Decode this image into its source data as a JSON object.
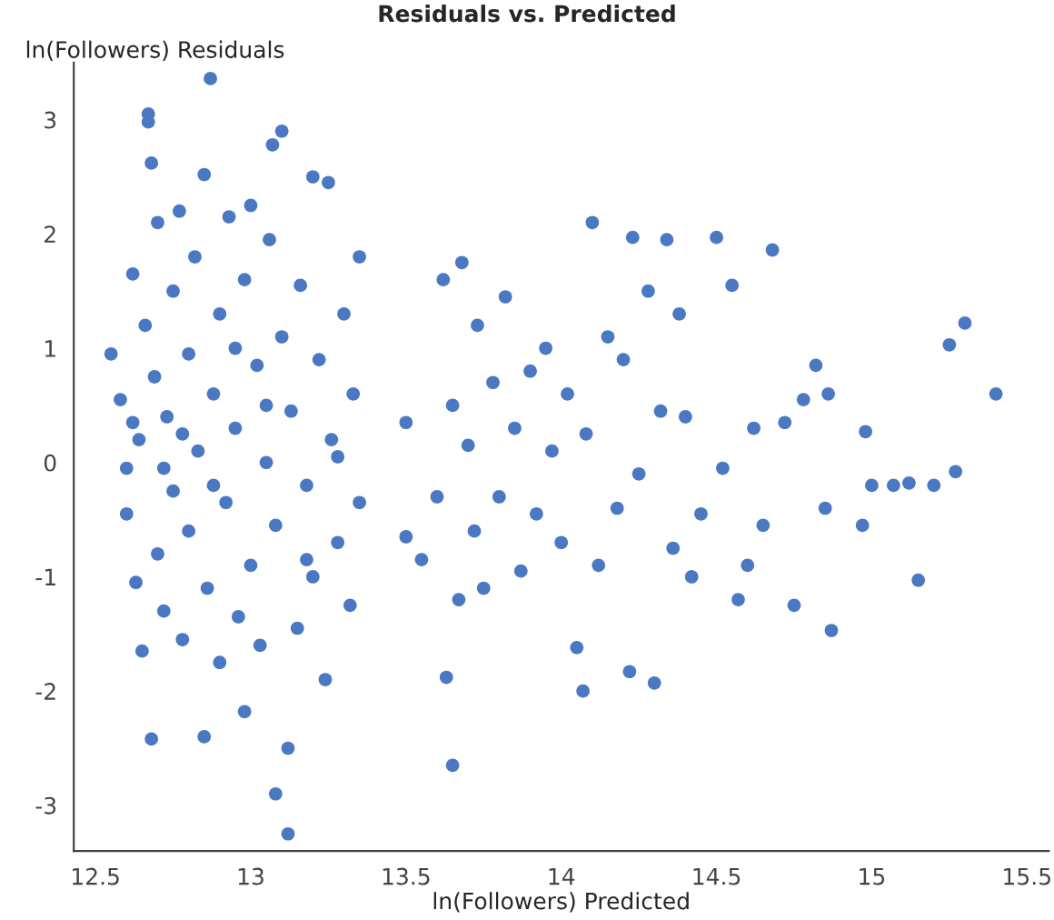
{
  "chart_data": {
    "type": "scatter",
    "title": "Residuals vs. Predicted",
    "xlabel": "ln(Followers) Predicted",
    "ylabel": "ln(Followers) Residuals",
    "xlim": [
      12.43,
      15.57
    ],
    "ylim": [
      -3.4,
      3.5
    ],
    "xticks": [
      12.5,
      13,
      13.5,
      14,
      14.5,
      15,
      15.5
    ],
    "yticks": [
      -3,
      -2,
      -1,
      0,
      1,
      2,
      3
    ],
    "grid": false,
    "marker": "circle",
    "series": [
      {
        "color": "#4a78c2",
        "x": [
          12.55,
          12.58,
          12.6,
          12.6,
          12.62,
          12.63,
          12.64,
          12.65,
          12.66,
          12.67,
          12.67,
          12.68,
          12.68,
          12.69,
          12.7,
          12.7,
          12.72,
          12.73,
          12.75,
          12.75,
          12.77,
          12.78,
          12.8,
          12.8,
          12.82,
          12.83,
          12.85,
          12.85,
          12.86,
          12.87,
          12.88,
          12.9,
          12.9,
          12.92,
          12.93,
          12.95,
          12.96,
          12.98,
          12.98,
          13.0,
          13.0,
          13.02,
          13.03,
          13.05,
          13.06,
          13.07,
          13.08,
          13.08,
          13.1,
          13.1,
          13.12,
          13.12,
          13.13,
          13.15,
          13.16,
          13.18,
          13.2,
          13.2,
          13.22,
          13.24,
          13.25,
          13.26,
          13.28,
          13.3,
          13.32,
          13.33,
          13.35,
          13.35,
          12.62,
          12.72,
          12.88,
          13.05,
          13.18,
          12.95,
          12.78,
          13.28,
          13.5,
          13.5,
          13.55,
          13.6,
          13.62,
          13.63,
          13.65,
          13.65,
          13.67,
          13.68,
          13.7,
          13.72,
          13.73,
          13.75,
          13.78,
          13.8,
          13.82,
          13.85,
          13.87,
          13.9,
          13.92,
          13.95,
          13.97,
          14.0,
          14.02,
          14.05,
          14.07,
          14.08,
          14.1,
          14.12,
          14.15,
          14.18,
          14.2,
          14.22,
          14.23,
          14.25,
          14.28,
          14.3,
          14.32,
          14.34,
          14.36,
          14.38,
          14.4,
          14.42,
          14.45,
          14.5,
          14.52,
          14.55,
          14.57,
          14.6,
          14.62,
          14.65,
          14.68,
          14.72,
          14.75,
          14.78,
          14.82,
          14.85,
          14.86,
          14.87,
          14.97,
          14.98,
          15.0,
          15.07,
          15.12,
          15.15,
          15.2,
          15.25,
          15.27,
          15.3,
          15.4
        ],
        "values": [
          0.95,
          0.55,
          -0.05,
          -0.45,
          1.65,
          -1.05,
          0.2,
          -1.65,
          1.2,
          3.05,
          2.98,
          2.62,
          -2.42,
          0.75,
          -0.8,
          2.1,
          -1.3,
          0.4,
          1.5,
          -0.25,
          2.2,
          -1.55,
          0.95,
          -0.6,
          1.8,
          0.1,
          -2.4,
          2.52,
          -1.1,
          3.36,
          0.6,
          -1.75,
          1.3,
          -0.35,
          2.15,
          0.3,
          -1.35,
          -2.18,
          1.6,
          -0.9,
          2.25,
          0.85,
          -1.6,
          0.0,
          1.95,
          2.78,
          -2.9,
          -0.55,
          2.9,
          1.1,
          -3.25,
          -2.5,
          0.45,
          -1.45,
          1.55,
          -0.2,
          2.5,
          -1.0,
          0.9,
          -1.9,
          2.45,
          0.2,
          -0.7,
          1.3,
          -1.25,
          0.6,
          -0.35,
          1.8,
          0.35,
          -0.05,
          -0.2,
          0.5,
          -0.85,
          1.0,
          0.25,
          0.05,
          0.35,
          -0.65,
          -0.85,
          -0.3,
          1.6,
          -1.88,
          -2.65,
          0.5,
          -1.2,
          1.75,
          0.15,
          -0.6,
          1.2,
          -1.1,
          0.7,
          -0.3,
          1.45,
          0.3,
          -0.95,
          0.8,
          -0.45,
          1.0,
          0.1,
          -0.7,
          0.6,
          -1.62,
          -2.0,
          0.25,
          2.1,
          -0.9,
          1.1,
          -0.4,
          0.9,
          -1.83,
          1.97,
          -0.1,
          1.5,
          -1.93,
          0.45,
          1.95,
          -0.75,
          1.3,
          0.4,
          -1.0,
          -0.45,
          1.97,
          -0.05,
          1.55,
          -1.2,
          -0.9,
          0.3,
          -0.55,
          1.86,
          0.35,
          -1.25,
          0.55,
          0.85,
          -0.4,
          0.6,
          -1.47,
          -0.55,
          0.27,
          -0.2,
          -0.2,
          -0.18,
          -1.03,
          -0.2,
          1.03,
          -0.08,
          1.22,
          0.6
        ]
      }
    ]
  }
}
